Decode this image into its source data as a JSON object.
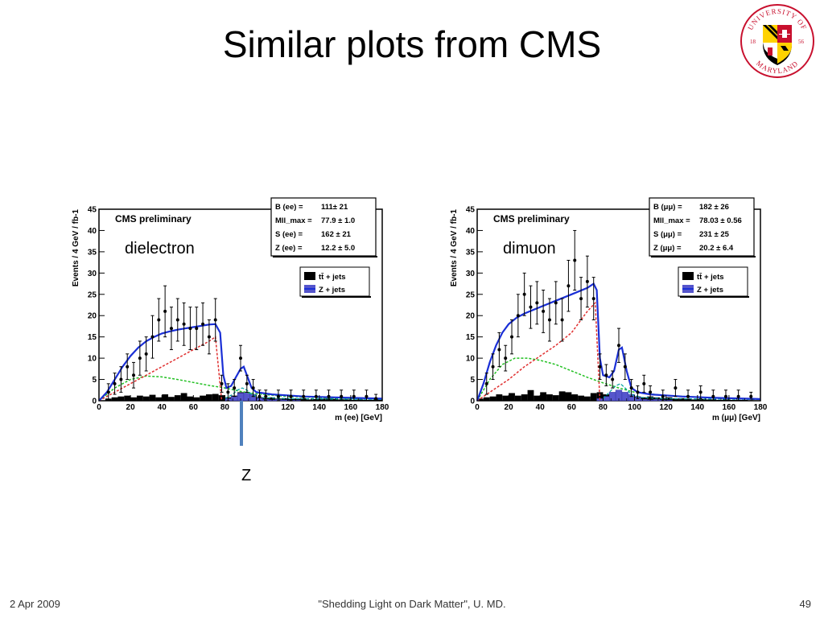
{
  "slide": {
    "title": "Similar plots from CMS",
    "footer_date": "2 Apr 2009",
    "footer_center": "\"Shedding Light on Dark Matter\", U. MD.",
    "page_number": "49",
    "z_marker_label": "Z"
  },
  "logo": {
    "top_text": "UNIVERSITY OF",
    "bottom_text": "MARYLAND",
    "year_left": "18",
    "year_right": "56",
    "colors": {
      "red": "#c8102e",
      "gold": "#ffd200",
      "black": "#000000",
      "white": "#ffffff"
    }
  },
  "chart_data": [
    {
      "type": "scatter",
      "title": "CMS preliminary",
      "annotation": "dielectron",
      "xlabel": "m (ee) [GeV]",
      "ylabel": "Events / 4 GeV / fb-1",
      "xlim": [
        0,
        180
      ],
      "ylim": [
        0,
        45
      ],
      "xticks": [
        "0",
        "20",
        "40",
        "60",
        "80",
        "100",
        "120",
        "140",
        "160",
        "180"
      ],
      "yticks": [
        "0",
        "5",
        "10",
        "15",
        "20",
        "25",
        "30",
        "35",
        "40",
        "45"
      ],
      "fit_box": [
        {
          "label": "B (ee) =",
          "value": "111± 21"
        },
        {
          "label": "Mll_max =",
          "value": "77.9 ± 1.0"
        },
        {
          "label": "S (ee) =",
          "value": "162 ± 21"
        },
        {
          "label": "Z (ee) =",
          "value": "12.2 ± 5.0"
        }
      ],
      "legend": [
        {
          "label": "tt̄ + jets",
          "color": "#000000"
        },
        {
          "label": "Z + jets",
          "color": "#5555cc"
        }
      ],
      "legend_position": "top-right",
      "colors": {
        "fit": "#1a2fd6",
        "signal": "#e03030",
        "background": "#22c022",
        "z_line": "#00a0a0"
      },
      "points": [
        {
          "x": 6,
          "y": 2,
          "err": 2
        },
        {
          "x": 10,
          "y": 4,
          "err": 2.5
        },
        {
          "x": 14,
          "y": 5,
          "err": 3
        },
        {
          "x": 18,
          "y": 8,
          "err": 3
        },
        {
          "x": 22,
          "y": 6,
          "err": 3
        },
        {
          "x": 26,
          "y": 10,
          "err": 4
        },
        {
          "x": 30,
          "y": 11,
          "err": 4
        },
        {
          "x": 34,
          "y": 15,
          "err": 5
        },
        {
          "x": 38,
          "y": 19,
          "err": 5
        },
        {
          "x": 42,
          "y": 21,
          "err": 6
        },
        {
          "x": 46,
          "y": 17,
          "err": 5
        },
        {
          "x": 50,
          "y": 19,
          "err": 5
        },
        {
          "x": 54,
          "y": 18,
          "err": 5
        },
        {
          "x": 58,
          "y": 17,
          "err": 5
        },
        {
          "x": 62,
          "y": 17,
          "err": 5
        },
        {
          "x": 66,
          "y": 18,
          "err": 5
        },
        {
          "x": 70,
          "y": 15,
          "err": 4
        },
        {
          "x": 74,
          "y": 19,
          "err": 5
        },
        {
          "x": 78,
          "y": 4,
          "err": 2
        },
        {
          "x": 82,
          "y": 2,
          "err": 2
        },
        {
          "x": 86,
          "y": 3,
          "err": 2
        },
        {
          "x": 90,
          "y": 10,
          "err": 3
        },
        {
          "x": 94,
          "y": 4,
          "err": 2
        },
        {
          "x": 98,
          "y": 3,
          "err": 2
        },
        {
          "x": 102,
          "y": 1,
          "err": 1.5
        },
        {
          "x": 106,
          "y": 1,
          "err": 1.5
        },
        {
          "x": 114,
          "y": 1,
          "err": 1.5
        },
        {
          "x": 122,
          "y": 1,
          "err": 1.5
        },
        {
          "x": 130,
          "y": 1,
          "err": 1.5
        },
        {
          "x": 138,
          "y": 1,
          "err": 1.5
        },
        {
          "x": 146,
          "y": 1,
          "err": 1.5
        },
        {
          "x": 154,
          "y": 1,
          "err": 1.5
        },
        {
          "x": 162,
          "y": 1,
          "err": 1.5
        },
        {
          "x": 170,
          "y": 1,
          "err": 1.5
        },
        {
          "x": 176,
          "y": 0.5,
          "err": 1
        }
      ],
      "fit_curve": [
        [
          0,
          0
        ],
        [
          5,
          2
        ],
        [
          10,
          5
        ],
        [
          15,
          8
        ],
        [
          20,
          10.5
        ],
        [
          25,
          12.5
        ],
        [
          30,
          14
        ],
        [
          35,
          15
        ],
        [
          40,
          15.8
        ],
        [
          45,
          16.3
        ],
        [
          50,
          16.7
        ],
        [
          55,
          17
        ],
        [
          60,
          17.3
        ],
        [
          65,
          17.6
        ],
        [
          70,
          17.9
        ],
        [
          74,
          18
        ],
        [
          77,
          16
        ],
        [
          79,
          6
        ],
        [
          81,
          3
        ],
        [
          84,
          3.5
        ],
        [
          87,
          5.5
        ],
        [
          90,
          7.5
        ],
        [
          92,
          8
        ],
        [
          94,
          6
        ],
        [
          97,
          3
        ],
        [
          100,
          2
        ],
        [
          110,
          1.5
        ],
        [
          130,
          1
        ],
        [
          150,
          0.8
        ],
        [
          180,
          0.5
        ]
      ],
      "signal_curve": [
        [
          0,
          0
        ],
        [
          10,
          2
        ],
        [
          20,
          4
        ],
        [
          30,
          6
        ],
        [
          40,
          8
        ],
        [
          50,
          10
        ],
        [
          60,
          12
        ],
        [
          70,
          14
        ],
        [
          74,
          15
        ],
        [
          78,
          0
        ]
      ],
      "background_curve": [
        [
          0,
          0
        ],
        [
          10,
          3
        ],
        [
          20,
          5
        ],
        [
          30,
          5.8
        ],
        [
          40,
          5.6
        ],
        [
          50,
          5
        ],
        [
          60,
          4.3
        ],
        [
          70,
          3.6
        ],
        [
          80,
          3
        ],
        [
          90,
          2.2
        ],
        [
          100,
          1.6
        ],
        [
          120,
          1
        ],
        [
          150,
          0.6
        ],
        [
          180,
          0.4
        ]
      ],
      "z_curve": [
        [
          80,
          0.5
        ],
        [
          85,
          1.5
        ],
        [
          88,
          2.5
        ],
        [
          91,
          3
        ],
        [
          94,
          2.5
        ],
        [
          97,
          1.5
        ],
        [
          102,
          0.8
        ],
        [
          120,
          0.5
        ],
        [
          180,
          0.3
        ]
      ],
      "ttbar_hist": [
        0,
        0.5,
        0.8,
        1,
        1.2,
        0.8,
        1.2,
        1,
        1.4,
        0.8,
        1.5,
        0.9,
        1.3,
        1.8,
        1,
        0.8,
        1.2,
        1.5,
        1.6,
        1.3,
        0.8,
        1.2,
        2,
        1,
        0.6,
        0.8,
        0.6,
        0.8,
        0.5,
        0.6,
        0.4,
        0.5,
        0.6,
        0.3,
        0.4,
        0.5,
        0.6,
        0.4,
        0.3,
        0.3,
        0.2,
        0.3,
        0.2,
        0.2,
        0.3
      ],
      "zjets_hist": [
        0,
        0,
        0,
        0,
        0,
        0,
        0,
        0,
        0,
        0,
        0,
        0,
        0,
        0,
        0,
        0,
        0,
        0,
        0,
        0,
        0.5,
        1,
        1.8,
        2,
        1.5,
        0.6,
        0.3,
        0.2,
        0.3,
        0.2,
        0.1,
        0.1,
        0,
        0,
        0,
        0,
        0,
        0,
        0,
        0,
        0,
        0,
        0,
        0,
        0
      ]
    },
    {
      "type": "scatter",
      "title": "CMS preliminary",
      "annotation": "dimuon",
      "xlabel": "m (μμ) [GeV]",
      "ylabel": "Events / 4 GeV / fb-1",
      "xlim": [
        0,
        180
      ],
      "ylim": [
        0,
        45
      ],
      "xticks": [
        "0",
        "20",
        "40",
        "60",
        "80",
        "100",
        "120",
        "140",
        "160",
        "180"
      ],
      "yticks": [
        "0",
        "5",
        "10",
        "15",
        "20",
        "25",
        "30",
        "35",
        "40",
        "45"
      ],
      "fit_box": [
        {
          "label": "B (μμ) =",
          "value": "182 ± 26"
        },
        {
          "label": "Mll_max =",
          "value": "78.03 ± 0.56"
        },
        {
          "label": "S (μμ) =",
          "value": "231 ± 25"
        },
        {
          "label": "Z (μμ) =",
          "value": "20.2 ± 6.4"
        }
      ],
      "legend": [
        {
          "label": "tt̄ + jets",
          "color": "#000000"
        },
        {
          "label": "Z + jets",
          "color": "#5555cc"
        }
      ],
      "legend_position": "top-right",
      "colors": {
        "fit": "#1a2fd6",
        "signal": "#e03030",
        "background": "#22c022",
        "z_line": "#00a0a0"
      },
      "points": [
        {
          "x": 6,
          "y": 4,
          "err": 2.5
        },
        {
          "x": 10,
          "y": 8,
          "err": 3
        },
        {
          "x": 14,
          "y": 12,
          "err": 4
        },
        {
          "x": 18,
          "y": 10,
          "err": 3
        },
        {
          "x": 22,
          "y": 15,
          "err": 4
        },
        {
          "x": 26,
          "y": 20,
          "err": 5
        },
        {
          "x": 30,
          "y": 25,
          "err": 5
        },
        {
          "x": 34,
          "y": 22,
          "err": 5
        },
        {
          "x": 38,
          "y": 23,
          "err": 5
        },
        {
          "x": 42,
          "y": 21,
          "err": 5
        },
        {
          "x": 46,
          "y": 19,
          "err": 5
        },
        {
          "x": 50,
          "y": 23,
          "err": 5
        },
        {
          "x": 54,
          "y": 19,
          "err": 5
        },
        {
          "x": 58,
          "y": 27,
          "err": 6
        },
        {
          "x": 62,
          "y": 33,
          "err": 7
        },
        {
          "x": 66,
          "y": 24,
          "err": 5
        },
        {
          "x": 70,
          "y": 28,
          "err": 6
        },
        {
          "x": 74,
          "y": 24,
          "err": 5
        },
        {
          "x": 78,
          "y": 8,
          "err": 3
        },
        {
          "x": 82,
          "y": 6,
          "err": 2.5
        },
        {
          "x": 86,
          "y": 5,
          "err": 2
        },
        {
          "x": 90,
          "y": 13,
          "err": 4
        },
        {
          "x": 94,
          "y": 8,
          "err": 3
        },
        {
          "x": 98,
          "y": 3,
          "err": 2
        },
        {
          "x": 102,
          "y": 2,
          "err": 1.5
        },
        {
          "x": 106,
          "y": 4,
          "err": 2
        },
        {
          "x": 110,
          "y": 2,
          "err": 1.5
        },
        {
          "x": 118,
          "y": 1,
          "err": 1.5
        },
        {
          "x": 126,
          "y": 3,
          "err": 2
        },
        {
          "x": 134,
          "y": 1,
          "err": 1.5
        },
        {
          "x": 142,
          "y": 2,
          "err": 1.5
        },
        {
          "x": 150,
          "y": 1,
          "err": 1.5
        },
        {
          "x": 158,
          "y": 1,
          "err": 1.5
        },
        {
          "x": 166,
          "y": 1,
          "err": 1.5
        },
        {
          "x": 174,
          "y": 1,
          "err": 1
        }
      ],
      "fit_curve": [
        [
          0,
          0
        ],
        [
          4,
          4
        ],
        [
          8,
          9
        ],
        [
          12,
          13
        ],
        [
          16,
          16
        ],
        [
          20,
          18
        ],
        [
          25,
          19.5
        ],
        [
          30,
          20.5
        ],
        [
          40,
          22
        ],
        [
          50,
          23.5
        ],
        [
          60,
          25
        ],
        [
          70,
          26.5
        ],
        [
          74,
          27.5
        ],
        [
          76,
          26
        ],
        [
          78,
          10
        ],
        [
          80,
          6
        ],
        [
          84,
          5.5
        ],
        [
          87,
          7
        ],
        [
          90,
          12
        ],
        [
          92,
          12.5
        ],
        [
          95,
          7
        ],
        [
          98,
          3
        ],
        [
          102,
          2
        ],
        [
          110,
          1.5
        ],
        [
          130,
          1
        ],
        [
          150,
          0.7
        ],
        [
          180,
          0.4
        ]
      ],
      "signal_curve": [
        [
          0,
          0
        ],
        [
          10,
          2.5
        ],
        [
          20,
          5
        ],
        [
          30,
          8
        ],
        [
          40,
          10.5
        ],
        [
          50,
          13
        ],
        [
          60,
          16
        ],
        [
          70,
          21
        ],
        [
          75,
          23
        ],
        [
          78,
          0
        ]
      ],
      "background_curve": [
        [
          0,
          0
        ],
        [
          8,
          5
        ],
        [
          16,
          8.5
        ],
        [
          24,
          10
        ],
        [
          32,
          10
        ],
        [
          40,
          9.5
        ],
        [
          50,
          8.5
        ],
        [
          60,
          7
        ],
        [
          70,
          5.5
        ],
        [
          80,
          4.2
        ],
        [
          90,
          3
        ],
        [
          100,
          2
        ],
        [
          120,
          1.2
        ],
        [
          150,
          0.7
        ],
        [
          180,
          0.4
        ]
      ],
      "z_curve": [
        [
          80,
          0.5
        ],
        [
          84,
          2
        ],
        [
          88,
          3.5
        ],
        [
          91,
          4
        ],
        [
          94,
          3
        ],
        [
          98,
          1.5
        ],
        [
          104,
          0.8
        ],
        [
          120,
          0.5
        ],
        [
          180,
          0.3
        ]
      ],
      "ttbar_hist": [
        0.5,
        0.8,
        1,
        1.5,
        1.2,
        1.8,
        1.2,
        1.5,
        2.5,
        1.2,
        2,
        1.5,
        1.3,
        2.2,
        2,
        1.5,
        1.2,
        1,
        1.8,
        2,
        1.5,
        1,
        1.5,
        0.8,
        1.2,
        1,
        0.8,
        1,
        0.8,
        0.6,
        0.8,
        0.5,
        0.6,
        0.4,
        0.3,
        0.4,
        0.3,
        0.3,
        0.2,
        0.3,
        0.2,
        0.2,
        0.2,
        0.1,
        0.1
      ],
      "zjets_hist": [
        0,
        0,
        0,
        0,
        0,
        0,
        0,
        0,
        0,
        0,
        0,
        0,
        0,
        0,
        0,
        0,
        0,
        0,
        0,
        0.5,
        1,
        2,
        2.5,
        2,
        1.5,
        0.8,
        0.3,
        0.2,
        0.3,
        0.2,
        0.1,
        0,
        0,
        0,
        0,
        0,
        0,
        0,
        0,
        0,
        0,
        0,
        0,
        0,
        0
      ]
    }
  ]
}
